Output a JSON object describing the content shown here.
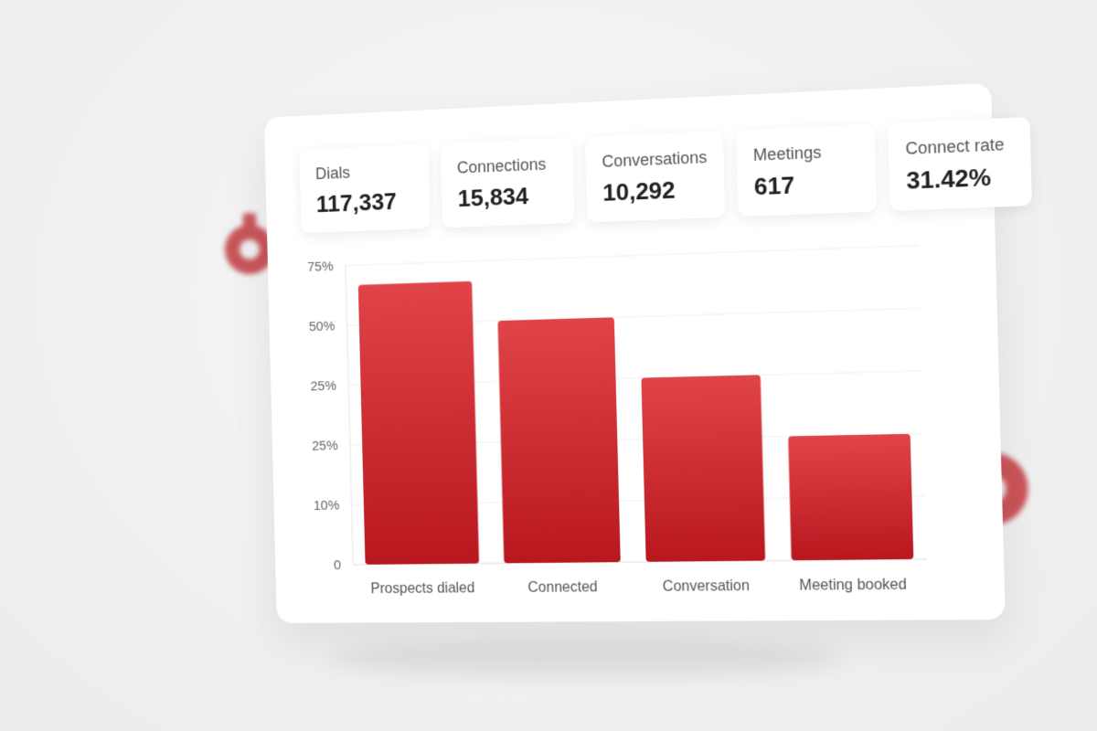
{
  "stats": [
    {
      "label": "Dials",
      "value": "117,337"
    },
    {
      "label": "Connections",
      "value": "15,834"
    },
    {
      "label": "Conversations",
      "value": "10,292"
    },
    {
      "label": "Meetings",
      "value": "617"
    },
    {
      "label": "Connect rate",
      "value": "31.42%"
    }
  ],
  "chart_data": {
    "type": "bar",
    "categories": [
      "Prospects dialed",
      "Connected",
      "Conversation",
      "Meeting booked"
    ],
    "values": [
      70,
      60,
      45,
      30
    ],
    "ytick_labels": [
      "0",
      "10%",
      "25%",
      "25%",
      "50%",
      "75%"
    ],
    "ylim": [
      0,
      75
    ],
    "grid": true,
    "bar_color": "#c81e24",
    "title": "",
    "xlabel": "",
    "ylabel": ""
  }
}
